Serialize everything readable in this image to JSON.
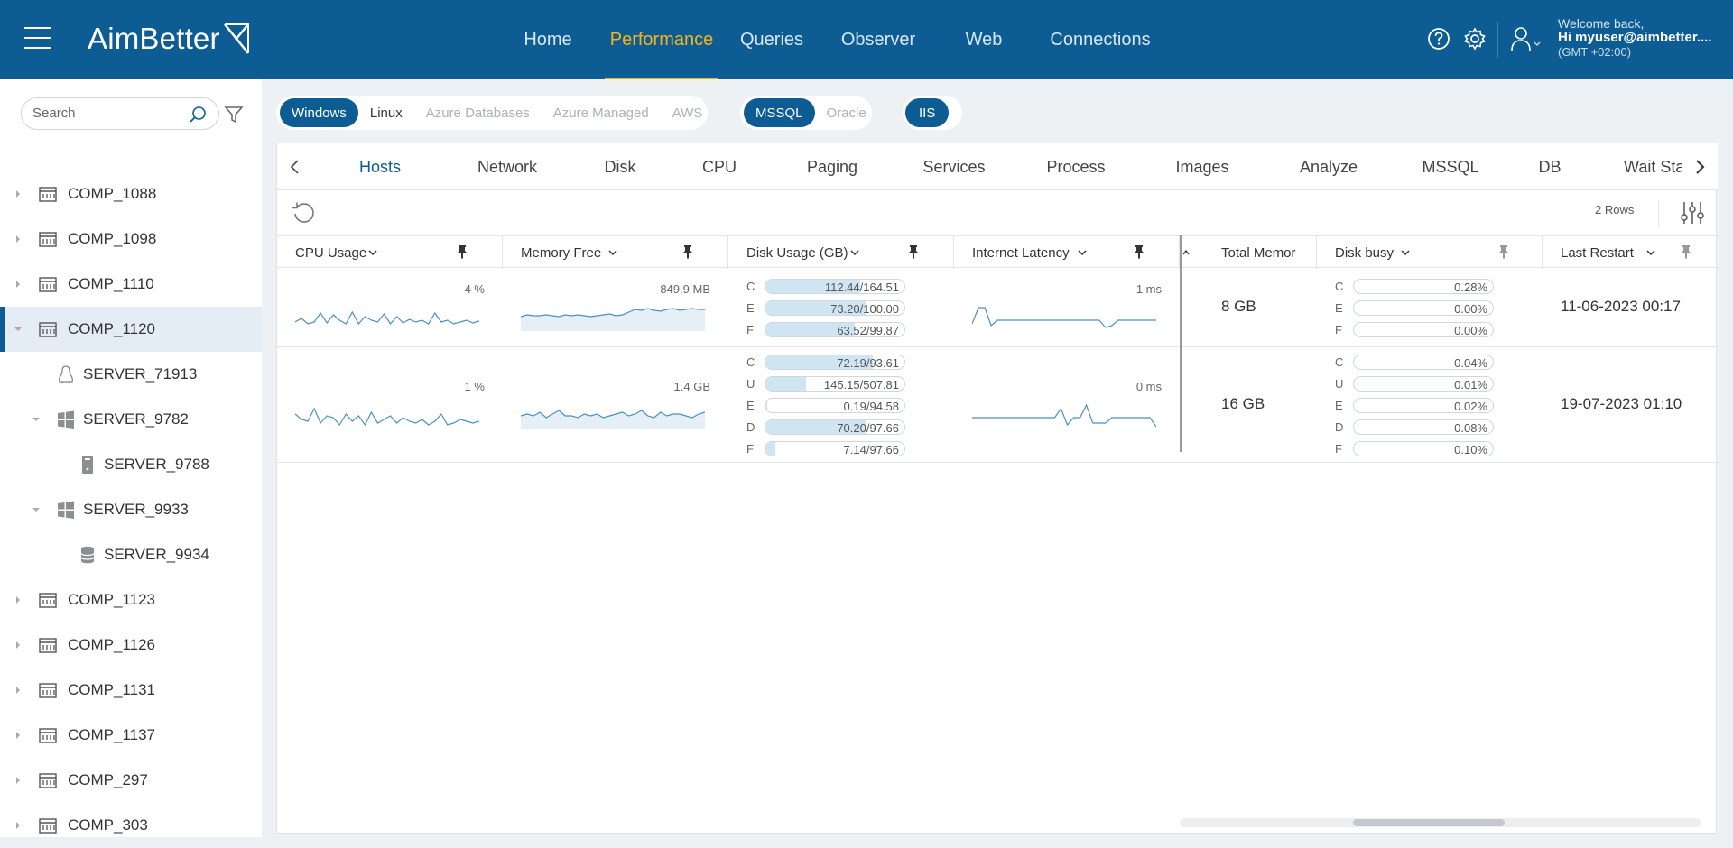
{
  "brand": {
    "name": "AimBetter"
  },
  "nav": {
    "items": [
      {
        "label": "Home",
        "active": false
      },
      {
        "label": "Performance",
        "active": true
      },
      {
        "label": "Queries",
        "active": false
      },
      {
        "label": "Observer",
        "active": false
      },
      {
        "label": "Web",
        "active": false
      },
      {
        "label": "Connections",
        "active": false
      }
    ]
  },
  "user": {
    "welcome": "Welcome back,",
    "name": "Hi myuser@aimbetter....",
    "timezone": "(GMT +02:00)"
  },
  "sidebar": {
    "search_placeholder": "Search",
    "tree": [
      {
        "label": "COMP_1088",
        "icon": "building-icon",
        "selected": false
      },
      {
        "label": "COMP_1098",
        "icon": "building-icon",
        "selected": false
      },
      {
        "label": "COMP_1110",
        "icon": "building-icon",
        "selected": false
      },
      {
        "label": "COMP_1120",
        "icon": "building-icon",
        "selected": true
      },
      {
        "label": "SERVER_71913",
        "icon": "linux-icon",
        "selected": false
      },
      {
        "label": "SERVER_9782",
        "icon": "windows-icon",
        "selected": false
      },
      {
        "label": "SERVER_9788",
        "icon": "server-tower-icon",
        "selected": false
      },
      {
        "label": "SERVER_9933",
        "icon": "windows-icon",
        "selected": false
      },
      {
        "label": "SERVER_9934",
        "icon": "database-icon",
        "selected": false
      },
      {
        "label": "COMP_1123",
        "icon": "building-icon",
        "selected": false
      },
      {
        "label": "COMP_1126",
        "icon": "building-icon",
        "selected": false
      },
      {
        "label": "COMP_1131",
        "icon": "building-icon",
        "selected": false
      },
      {
        "label": "COMP_1137",
        "icon": "building-icon",
        "selected": false
      },
      {
        "label": "COMP_297",
        "icon": "building-icon",
        "selected": false
      },
      {
        "label": "COMP_303",
        "icon": "building-icon",
        "selected": false
      }
    ]
  },
  "platforms": {
    "os": [
      "Windows",
      "Linux",
      "Azure Databases",
      "Azure Managed",
      "AWS"
    ],
    "db": [
      "MSSQL",
      "Oracle"
    ],
    "web": [
      "IIS"
    ]
  },
  "tabs": [
    "Hosts",
    "Network",
    "Disk",
    "CPU",
    "Paging",
    "Services",
    "Process",
    "Images",
    "Analyze",
    "MSSQL",
    "DB",
    "Wait Sta"
  ],
  "toolbar": {
    "rows_label": "2 Rows"
  },
  "columns": [
    "CPU Usage",
    "Memory Free",
    "Disk Usage (GB)",
    "Internet Latency",
    "Total Memor",
    "Disk busy",
    "Last Restart"
  ],
  "rows": [
    {
      "cpu": "4 %",
      "memory": "849.9 MB",
      "latency": "1 ms",
      "total_memory": "8 GB",
      "last_restart": "11-06-2023 00:17",
      "disks": [
        {
          "drive": "C",
          "usage": "112.44/164.51",
          "fill": 0.68,
          "busy": "0.28%"
        },
        {
          "drive": "E",
          "usage": "73.20/100.00",
          "fill": 0.73,
          "busy": "0.00%"
        },
        {
          "drive": "F",
          "usage": "63.52/99.87",
          "fill": 0.64,
          "busy": "0.00%"
        }
      ]
    },
    {
      "cpu": "1 %",
      "memory": "1.4 GB",
      "latency": "0 ms",
      "total_memory": "16 GB",
      "last_restart": "19-07-2023 01:10",
      "disks": [
        {
          "drive": "C",
          "usage": "72.19/93.61",
          "fill": 0.77,
          "busy": "0.04%"
        },
        {
          "drive": "U",
          "usage": "145.15/507.81",
          "fill": 0.29,
          "busy": "0.01%"
        },
        {
          "drive": "E",
          "usage": "0.19/94.58",
          "fill": 0.01,
          "busy": "0.02%"
        },
        {
          "drive": "D",
          "usage": "70.20/97.66",
          "fill": 0.72,
          "busy": "0.08%"
        },
        {
          "drive": "F",
          "usage": "7.14/97.66",
          "fill": 0.07,
          "busy": "0.10%"
        }
      ]
    }
  ],
  "colors": {
    "brand": "#0d5d94",
    "active_nav": "#f5b31a",
    "spark": "#4a90c2",
    "disk_fill": "#cfe6f2"
  }
}
